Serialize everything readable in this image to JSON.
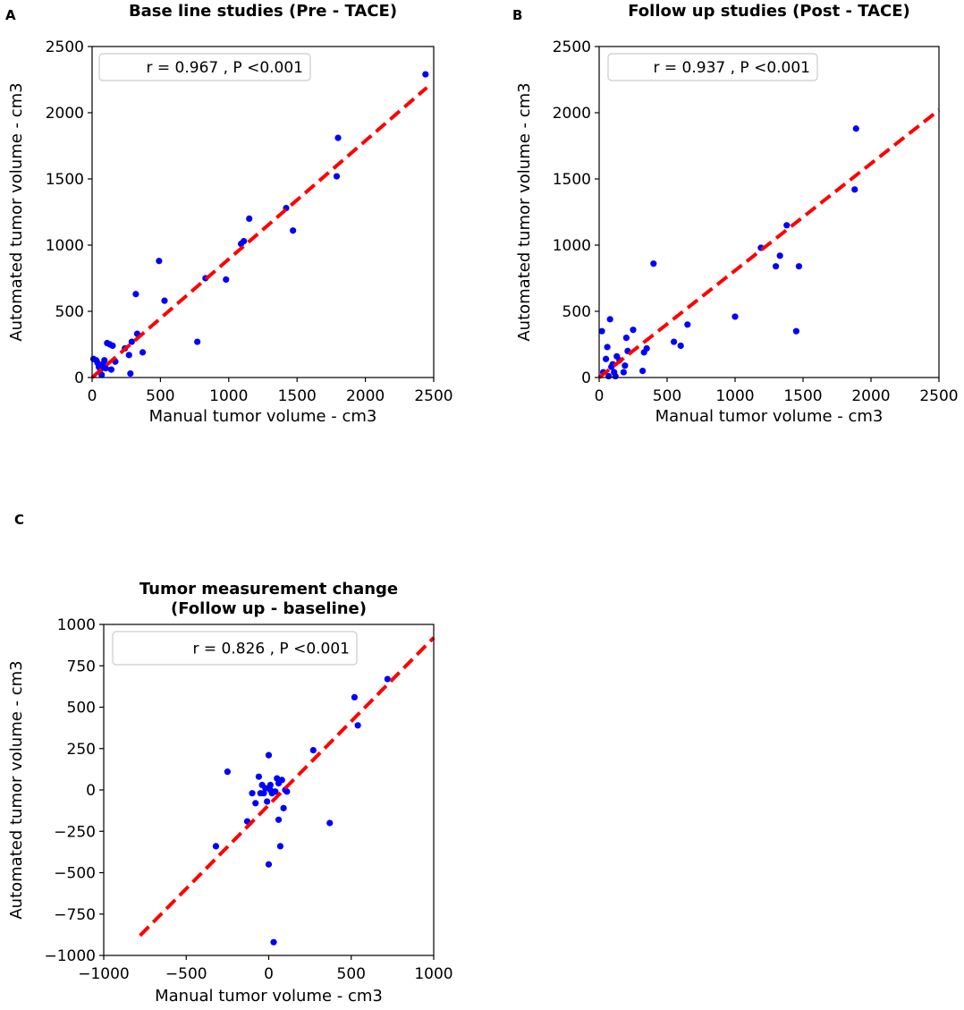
{
  "figure": {
    "panel_labels": [
      "A",
      "B",
      "C"
    ]
  },
  "colors": {
    "points": "#0000ff",
    "fit_line": "#ff0000",
    "axes": "#000000",
    "legend_border": "#cccccc"
  },
  "chart_data": [
    {
      "panel": "A",
      "type": "scatter",
      "title": "Base line studies (Pre - TACE)",
      "title_lines": [
        "Base line studies (Pre - TACE)"
      ],
      "xlabel": "Manual tumor volume - cm3",
      "ylabel": "Automated tumor volume - cm3",
      "xlim": [
        0,
        2500
      ],
      "ylim": [
        0,
        2500
      ],
      "xticks": [
        0,
        500,
        1000,
        1500,
        2000,
        2500
      ],
      "yticks": [
        0,
        500,
        1000,
        1500,
        2000,
        2500
      ],
      "xtick_labels": [
        "0",
        "500",
        "1000",
        "1500",
        "2000",
        "2500"
      ],
      "ytick_labels": [
        "0",
        "500",
        "1000",
        "1500",
        "2000",
        "2500"
      ],
      "legend": "r = 0.967 , P <0.001",
      "fit_line": [
        [
          0,
          0
        ],
        [
          2450,
          2190
        ]
      ],
      "points": [
        [
          10,
          140
        ],
        [
          30,
          130
        ],
        [
          40,
          110
        ],
        [
          50,
          80
        ],
        [
          60,
          60
        ],
        [
          70,
          20
        ],
        [
          80,
          100
        ],
        [
          90,
          130
        ],
        [
          100,
          70
        ],
        [
          110,
          260
        ],
        [
          130,
          250
        ],
        [
          140,
          60
        ],
        [
          150,
          240
        ],
        [
          170,
          120
        ],
        [
          240,
          220
        ],
        [
          270,
          170
        ],
        [
          280,
          30
        ],
        [
          290,
          270
        ],
        [
          320,
          630
        ],
        [
          330,
          330
        ],
        [
          370,
          190
        ],
        [
          490,
          880
        ],
        [
          530,
          580
        ],
        [
          770,
          270
        ],
        [
          830,
          750
        ],
        [
          980,
          740
        ],
        [
          1090,
          1010
        ],
        [
          1110,
          1030
        ],
        [
          1150,
          1200
        ],
        [
          1420,
          1280
        ],
        [
          1470,
          1110
        ],
        [
          1790,
          1520
        ],
        [
          1800,
          1810
        ],
        [
          2440,
          2290
        ]
      ]
    },
    {
      "panel": "B",
      "type": "scatter",
      "title": "Follow up studies (Post - TACE)",
      "title_lines": [
        "Follow up studies (Post - TACE)"
      ],
      "xlabel": "Manual tumor volume - cm3",
      "ylabel": "Automated tumor volume - cm3",
      "xlim": [
        0,
        2500
      ],
      "ylim": [
        0,
        2500
      ],
      "xticks": [
        0,
        500,
        1000,
        1500,
        2000,
        2500
      ],
      "yticks": [
        0,
        500,
        1000,
        1500,
        2000,
        2500
      ],
      "xtick_labels": [
        "0",
        "500",
        "1000",
        "1500",
        "2000",
        "2500"
      ],
      "ytick_labels": [
        "0",
        "500",
        "1000",
        "1500",
        "2000",
        "2500"
      ],
      "legend": "r = 0.937 , P <0.001",
      "fit_line": [
        [
          0,
          0
        ],
        [
          2500,
          2020
        ]
      ],
      "points": [
        [
          20,
          350
        ],
        [
          30,
          40
        ],
        [
          50,
          140
        ],
        [
          60,
          230
        ],
        [
          70,
          10
        ],
        [
          80,
          440
        ],
        [
          90,
          80
        ],
        [
          100,
          100
        ],
        [
          110,
          40
        ],
        [
          120,
          10
        ],
        [
          130,
          160
        ],
        [
          150,
          130
        ],
        [
          180,
          40
        ],
        [
          190,
          90
        ],
        [
          200,
          300
        ],
        [
          210,
          200
        ],
        [
          250,
          360
        ],
        [
          320,
          50
        ],
        [
          330,
          190
        ],
        [
          350,
          220
        ],
        [
          400,
          860
        ],
        [
          550,
          270
        ],
        [
          600,
          240
        ],
        [
          650,
          400
        ],
        [
          1000,
          460
        ],
        [
          1190,
          980
        ],
        [
          1300,
          840
        ],
        [
          1330,
          920
        ],
        [
          1380,
          1150
        ],
        [
          1450,
          350
        ],
        [
          1470,
          840
        ],
        [
          1880,
          1420
        ],
        [
          1890,
          1880
        ]
      ]
    },
    {
      "panel": "C",
      "type": "scatter",
      "title": "Tumor measurement change (Follow up - baseline)",
      "title_lines": [
        "Tumor measurement change",
        "(Follow up - baseline)"
      ],
      "xlabel": "Manual tumor volume - cm3",
      "ylabel": "Automated tumor volume - cm3",
      "xlim": [
        -1000,
        1000
      ],
      "ylim": [
        -1000,
        1000
      ],
      "xticks": [
        -1000,
        -500,
        0,
        500,
        1000
      ],
      "yticks": [
        -1000,
        -750,
        -500,
        -250,
        0,
        250,
        500,
        750,
        1000
      ],
      "xtick_labels": [
        "−1000",
        "−500",
        "0",
        "500",
        "1000"
      ],
      "ytick_labels": [
        "−1000",
        "−750",
        "−500",
        "−250",
        "0",
        "250",
        "500",
        "750",
        "1000"
      ],
      "legend": "r = 0.826 , P <0.001",
      "fit_line": [
        [
          -780,
          -880
        ],
        [
          1000,
          920
        ]
      ],
      "points": [
        [
          -320,
          -340
        ],
        [
          -250,
          110
        ],
        [
          -130,
          -190
        ],
        [
          -100,
          -20
        ],
        [
          -80,
          -80
        ],
        [
          -60,
          80
        ],
        [
          -50,
          -20
        ],
        [
          -40,
          30
        ],
        [
          -30,
          -20
        ],
        [
          -20,
          10
        ],
        [
          -10,
          -70
        ],
        [
          0,
          210
        ],
        [
          0,
          -450
        ],
        [
          10,
          30
        ],
        [
          10,
          0
        ],
        [
          20,
          -20
        ],
        [
          30,
          -920
        ],
        [
          40,
          -10
        ],
        [
          50,
          70
        ],
        [
          60,
          40
        ],
        [
          60,
          -180
        ],
        [
          70,
          -340
        ],
        [
          80,
          60
        ],
        [
          90,
          -110
        ],
        [
          100,
          0
        ],
        [
          110,
          -10
        ],
        [
          270,
          240
        ],
        [
          370,
          -200
        ],
        [
          520,
          560
        ],
        [
          540,
          390
        ],
        [
          720,
          670
        ]
      ]
    }
  ]
}
